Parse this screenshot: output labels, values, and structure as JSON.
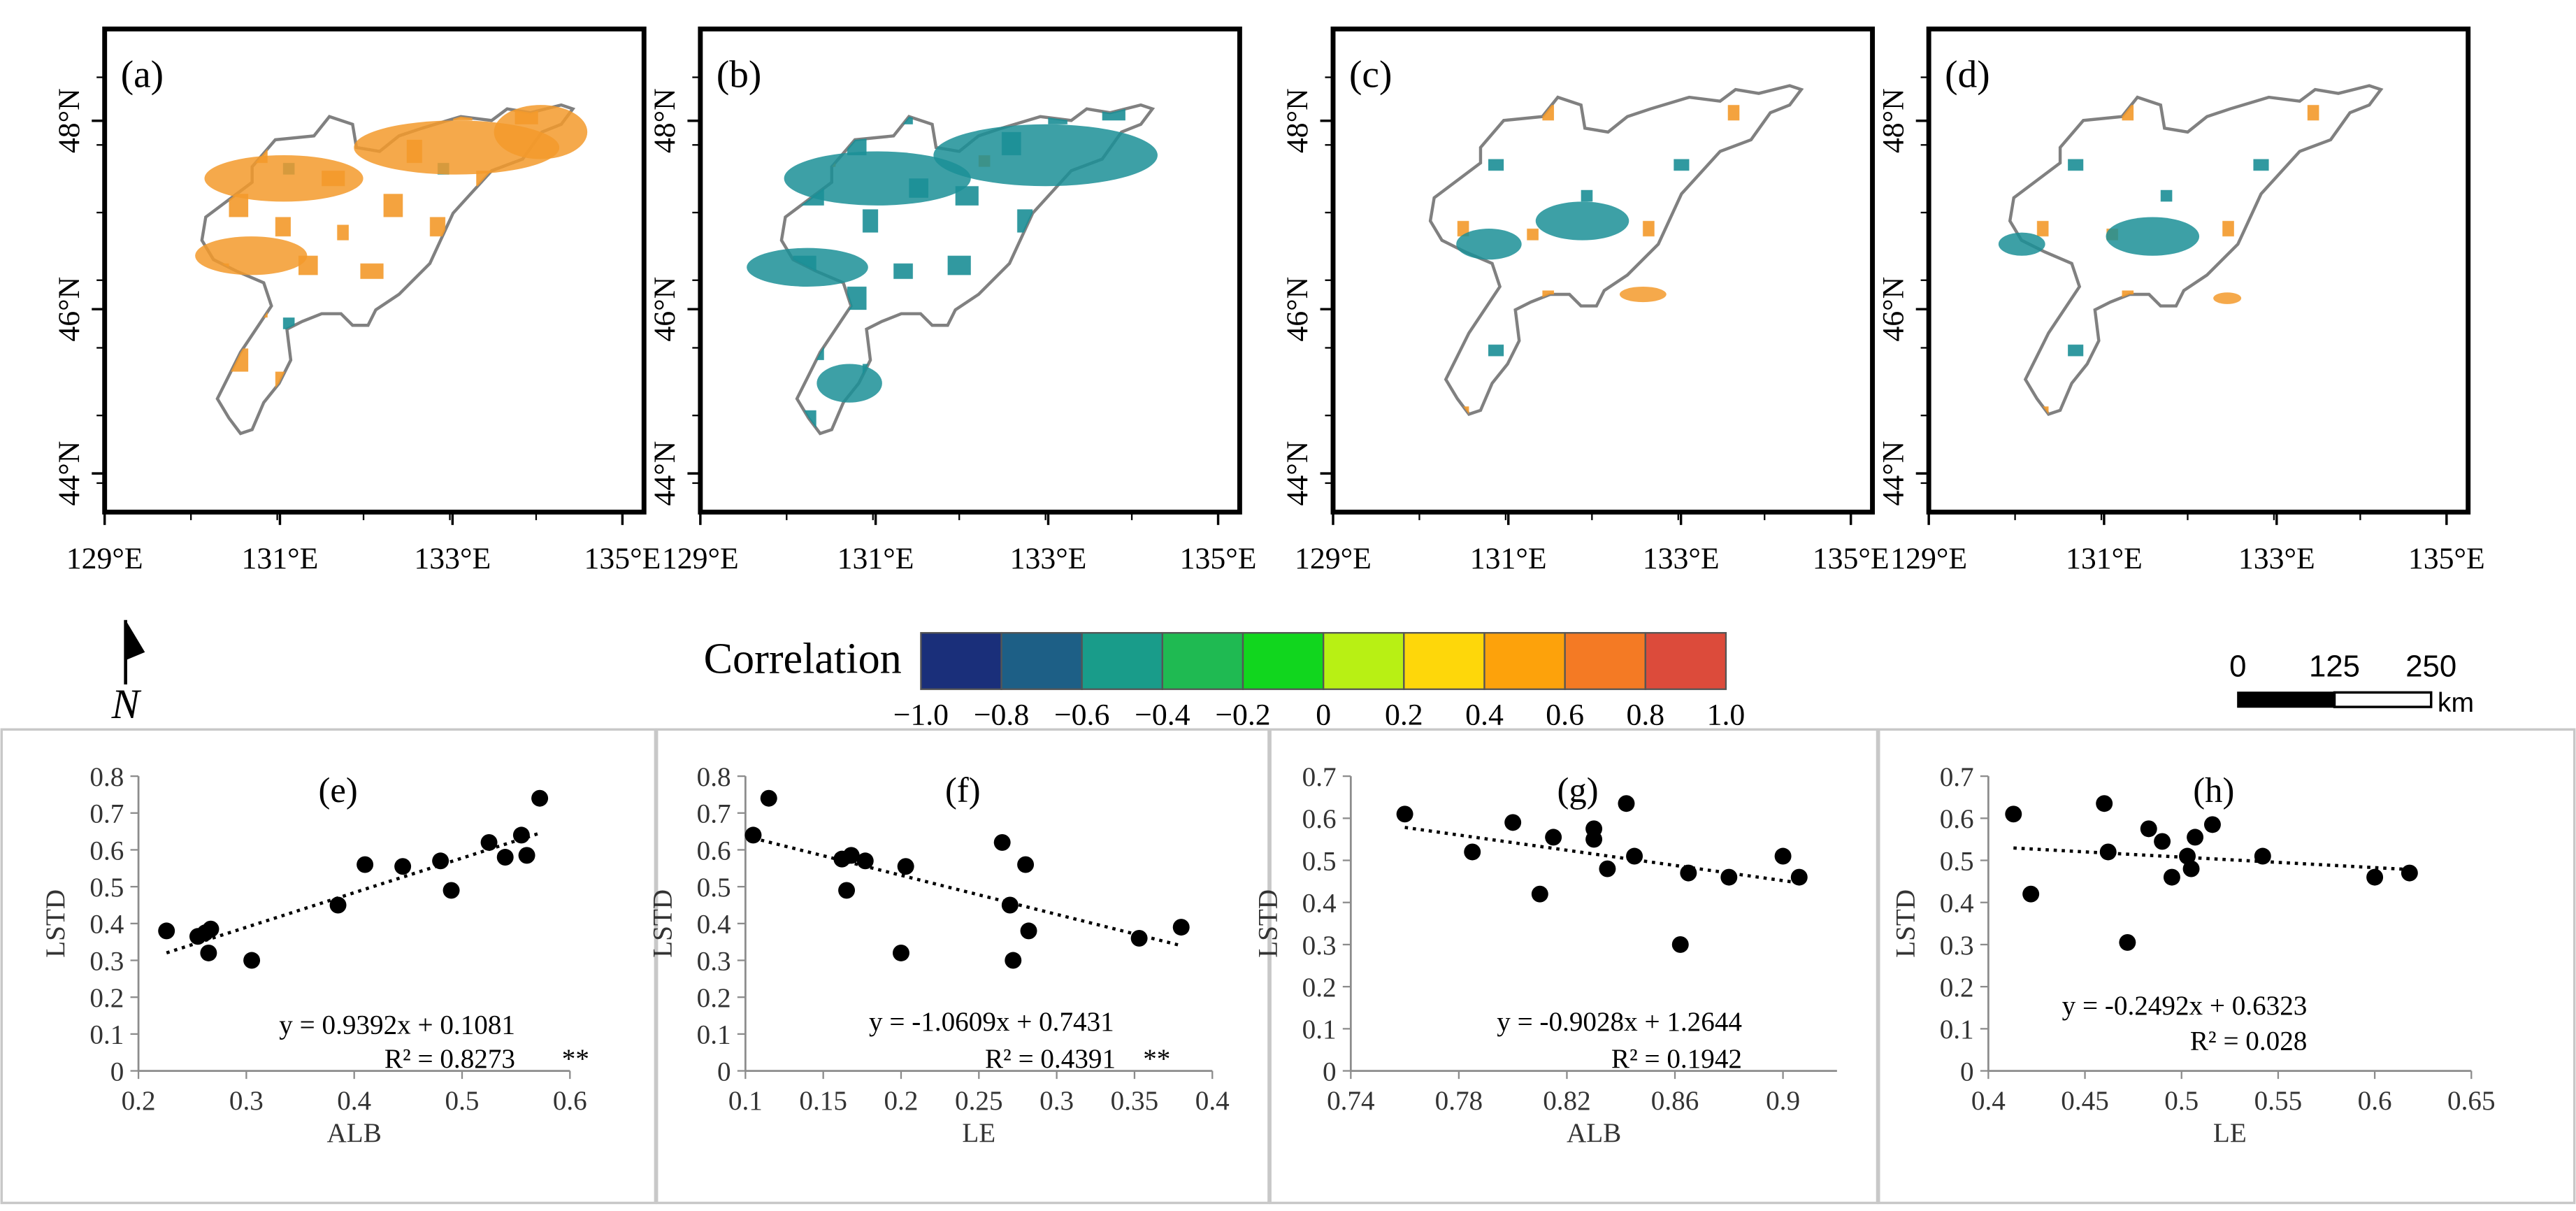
{
  "maps": {
    "panels": [
      {
        "label": "(a)",
        "lon_ticks": [
          "129°E",
          "131°E",
          "133°E",
          "135°E"
        ],
        "lat_ticks": [
          "44°N",
          "46°N",
          "48°N"
        ]
      },
      {
        "label": "(b)",
        "lon_ticks": [
          "129°E",
          "131°E",
          "133°E",
          "135°E"
        ],
        "lat_ticks": [
          "44°N",
          "46°N",
          "48°N"
        ]
      },
      {
        "label": "(c)",
        "lon_ticks": [
          "129°E",
          "131°E",
          "133°E",
          "135°E"
        ],
        "lat_ticks": [
          "44°N",
          "46°N",
          "48°N"
        ]
      },
      {
        "label": "(d)",
        "lon_ticks": [
          "129°E",
          "131°E",
          "133°E",
          "135°E"
        ],
        "lat_ticks": [
          "44°N",
          "46°N",
          "48°N"
        ]
      }
    ]
  },
  "legend": {
    "title": "Correlation",
    "colors": [
      "#1a2f7a",
      "#1d5f86",
      "#199c8a",
      "#1fba52",
      "#11d61e",
      "#b8f014",
      "#fed70a",
      "#fda20b",
      "#f47a24",
      "#dc4b3b"
    ],
    "tick_labels": [
      "−1.0",
      "−0.8",
      "−0.6",
      "−0.4",
      "−0.2",
      "0",
      "0.2",
      "0.4",
      "0.6",
      "0.8",
      "1.0"
    ]
  },
  "north_arrow": {
    "label": "N"
  },
  "scale_bar": {
    "ticks": [
      "0",
      "125",
      "250"
    ],
    "unit": "km"
  },
  "colors": {
    "map_orange": "#f39a2b",
    "map_teal": "#1b8f96",
    "boundary": "#808080",
    "points": "#000000"
  },
  "chart_data": [
    {
      "type": "scatter",
      "label": "(e)",
      "xlabel": "ALB",
      "ylabel": "LSTD",
      "xlim": [
        0.2,
        0.6
      ],
      "ylim": [
        0,
        0.8
      ],
      "xticks": [
        0.2,
        0.3,
        0.4,
        0.5,
        0.6
      ],
      "xtick_labels": [
        "0.2",
        "0.3",
        "0.4",
        "0.5",
        "0.6"
      ],
      "yticks": [
        0,
        0.1,
        0.2,
        0.3,
        0.4,
        0.5,
        0.6,
        0.7,
        0.8
      ],
      "ytick_labels": [
        "0",
        "0.1",
        "0.2",
        "0.3",
        "0.4",
        "0.5",
        "0.6",
        "0.7",
        "0.8"
      ],
      "points": [
        [
          0.226,
          0.38
        ],
        [
          0.255,
          0.365
        ],
        [
          0.262,
          0.375
        ],
        [
          0.267,
          0.385
        ],
        [
          0.265,
          0.32
        ],
        [
          0.305,
          0.3
        ],
        [
          0.385,
          0.45
        ],
        [
          0.41,
          0.56
        ],
        [
          0.445,
          0.555
        ],
        [
          0.48,
          0.57
        ],
        [
          0.49,
          0.49
        ],
        [
          0.525,
          0.62
        ],
        [
          0.54,
          0.58
        ],
        [
          0.555,
          0.64
        ],
        [
          0.56,
          0.585
        ],
        [
          0.572,
          0.74
        ]
      ],
      "trend": {
        "slope": 0.9392,
        "intercept": 0.1081,
        "x_range": [
          0.226,
          0.572
        ]
      },
      "equation": "y = 0.9392x + 0.1081",
      "r2": "R² = 0.8273",
      "significance": "**"
    },
    {
      "type": "scatter",
      "label": "(f)",
      "xlabel": "LE",
      "ylabel": "LSTD",
      "xlim": [
        0.1,
        0.4
      ],
      "ylim": [
        0,
        0.8
      ],
      "xticks": [
        0.1,
        0.15,
        0.2,
        0.25,
        0.3,
        0.35,
        0.4
      ],
      "xtick_labels": [
        "0.1",
        "0.15",
        "0.2",
        "0.25",
        "0.3",
        "0.35",
        "0.4"
      ],
      "yticks": [
        0,
        0.1,
        0.2,
        0.3,
        0.4,
        0.5,
        0.6,
        0.7,
        0.8
      ],
      "ytick_labels": [
        "0",
        "0.1",
        "0.2",
        "0.3",
        "0.4",
        "0.5",
        "0.6",
        "0.7",
        "0.8"
      ],
      "points": [
        [
          0.105,
          0.64
        ],
        [
          0.115,
          0.74
        ],
        [
          0.162,
          0.575
        ],
        [
          0.168,
          0.585
        ],
        [
          0.165,
          0.49
        ],
        [
          0.177,
          0.57
        ],
        [
          0.2,
          0.32
        ],
        [
          0.203,
          0.555
        ],
        [
          0.265,
          0.62
        ],
        [
          0.27,
          0.45
        ],
        [
          0.272,
          0.3
        ],
        [
          0.28,
          0.56
        ],
        [
          0.282,
          0.38
        ],
        [
          0.353,
          0.36
        ],
        [
          0.38,
          0.39
        ]
      ],
      "trend": {
        "slope": -1.0609,
        "intercept": 0.7431,
        "x_range": [
          0.105,
          0.38
        ]
      },
      "equation": "y = -1.0609x + 0.7431",
      "r2": "R² = 0.4391",
      "significance": "**"
    },
    {
      "type": "scatter",
      "label": "(g)",
      "xlabel": "ALB",
      "ylabel": "LSTD",
      "xlim": [
        0.74,
        0.92
      ],
      "ylim": [
        0,
        0.7
      ],
      "xticks": [
        0.74,
        0.78,
        0.82,
        0.86,
        0.9
      ],
      "xtick_labels": [
        "0.74",
        "0.78",
        "0.82",
        "0.86",
        "0.9"
      ],
      "yticks": [
        0,
        0.1,
        0.2,
        0.3,
        0.4,
        0.5,
        0.6,
        0.7
      ],
      "ytick_labels": [
        "0",
        "0.1",
        "0.2",
        "0.3",
        "0.4",
        "0.5",
        "0.6",
        "0.7"
      ],
      "points": [
        [
          0.76,
          0.61
        ],
        [
          0.785,
          0.52
        ],
        [
          0.8,
          0.59
        ],
        [
          0.81,
          0.42
        ],
        [
          0.815,
          0.555
        ],
        [
          0.83,
          0.55
        ],
        [
          0.83,
          0.575
        ],
        [
          0.835,
          0.48
        ],
        [
          0.842,
          0.635
        ],
        [
          0.845,
          0.51
        ],
        [
          0.862,
          0.3
        ],
        [
          0.865,
          0.47
        ],
        [
          0.88,
          0.46
        ],
        [
          0.9,
          0.51
        ],
        [
          0.906,
          0.46
        ]
      ],
      "trend": {
        "slope": -0.9028,
        "intercept": 1.2644,
        "x_range": [
          0.76,
          0.906
        ]
      },
      "equation": "y = -0.9028x + 1.2644",
      "r2": "R² = 0.1942",
      "significance": ""
    },
    {
      "type": "scatter",
      "label": "(h)",
      "xlabel": "LE",
      "ylabel": "LSTD",
      "xlim": [
        0.4,
        0.65
      ],
      "ylim": [
        0,
        0.7
      ],
      "xticks": [
        0.4,
        0.45,
        0.5,
        0.55,
        0.6,
        0.65
      ],
      "xtick_labels": [
        "0.4",
        "0.45",
        "0.5",
        "0.55",
        "0.6",
        "0.65"
      ],
      "yticks": [
        0,
        0.1,
        0.2,
        0.3,
        0.4,
        0.5,
        0.6,
        0.7
      ],
      "ytick_labels": [
        "0",
        "0.1",
        "0.2",
        "0.3",
        "0.4",
        "0.5",
        "0.6",
        "0.7"
      ],
      "points": [
        [
          0.413,
          0.61
        ],
        [
          0.422,
          0.42
        ],
        [
          0.46,
          0.635
        ],
        [
          0.462,
          0.52
        ],
        [
          0.472,
          0.305
        ],
        [
          0.483,
          0.575
        ],
        [
          0.49,
          0.545
        ],
        [
          0.495,
          0.46
        ],
        [
          0.503,
          0.51
        ],
        [
          0.505,
          0.48
        ],
        [
          0.507,
          0.555
        ],
        [
          0.516,
          0.585
        ],
        [
          0.542,
          0.51
        ],
        [
          0.6,
          0.46
        ],
        [
          0.618,
          0.47
        ]
      ],
      "trend": {
        "slope": -0.2492,
        "intercept": 0.6323,
        "x_range": [
          0.413,
          0.618
        ]
      },
      "equation": "y = -0.2492x + 0.6323",
      "r2": "R² = 0.028",
      "significance": ""
    }
  ]
}
